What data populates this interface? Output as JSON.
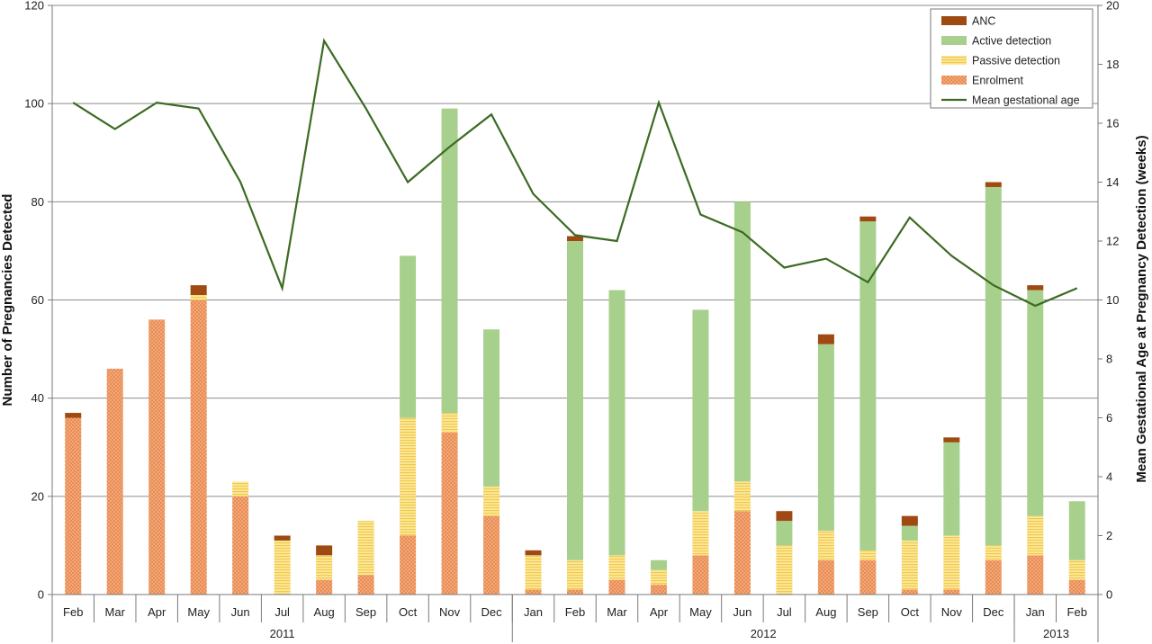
{
  "chart_data": {
    "type": "bar",
    "stacked": true,
    "categories": [
      "Feb",
      "Mar",
      "Apr",
      "May",
      "Jun",
      "Jul",
      "Aug",
      "Sep",
      "Oct",
      "Nov",
      "Dec",
      "Jan",
      "Feb",
      "Mar",
      "Apr",
      "May",
      "Jun",
      "Jul",
      "Aug",
      "Sep",
      "Oct",
      "Nov",
      "Dec",
      "Jan",
      "Feb"
    ],
    "year_groups": [
      {
        "label": "2011",
        "start": 0,
        "count": 11
      },
      {
        "label": "2012",
        "start": 11,
        "count": 12
      },
      {
        "label": "2013",
        "start": 23,
        "count": 2
      }
    ],
    "series": [
      {
        "name": "Enrolment",
        "color": "#f0a070",
        "values": [
          36,
          46,
          56,
          60,
          20,
          0,
          3,
          4,
          12,
          33,
          16,
          1,
          1,
          3,
          2,
          8,
          17,
          0,
          7,
          7,
          1,
          1,
          7,
          8,
          3
        ]
      },
      {
        "name": "Passive detection",
        "color": "#f7dc7a",
        "values": [
          0,
          0,
          0,
          1,
          3,
          11,
          5,
          11,
          24,
          4,
          6,
          7,
          6,
          5,
          3,
          9,
          6,
          10,
          6,
          2,
          10,
          11,
          3,
          8,
          4
        ]
      },
      {
        "name": "Active detection",
        "color": "#a8d08d",
        "values": [
          0,
          0,
          0,
          0,
          0,
          0,
          0,
          0,
          33,
          62,
          32,
          0,
          65,
          54,
          2,
          41,
          57,
          5,
          38,
          67,
          3,
          19,
          73,
          46,
          12
        ]
      },
      {
        "name": "ANC",
        "color": "#9e4a12",
        "values": [
          1,
          0,
          0,
          2,
          0,
          1,
          2,
          0,
          0,
          0,
          0,
          1,
          1,
          0,
          0,
          0,
          0,
          2,
          2,
          1,
          2,
          1,
          1,
          1,
          0
        ]
      }
    ],
    "line_series": {
      "name": "Mean gestational age",
      "color": "#3b6b22",
      "axis": "right",
      "values": [
        16.7,
        15.8,
        16.7,
        16.5,
        14.0,
        10.4,
        18.8,
        16.5,
        14.0,
        15.2,
        16.3,
        13.6,
        12.2,
        12.0,
        16.7,
        12.9,
        12.3,
        11.1,
        11.4,
        10.6,
        12.8,
        11.5,
        10.5,
        9.8,
        10.4
      ]
    },
    "ylabel": "Number of Pregnancies Detected",
    "ylabel_right": "Mean Gestational Age at Pregnancy Detection (weeks)",
    "ylim": [
      0,
      120
    ],
    "yticks": [
      0,
      20,
      40,
      60,
      80,
      100,
      120
    ],
    "ylim_right": [
      0,
      20
    ],
    "yticks_right": [
      0,
      2,
      4,
      6,
      8,
      10,
      12,
      14,
      16,
      18,
      20
    ],
    "grid": true,
    "legend_position": "top-right",
    "legend": [
      "ANC",
      "Active detection",
      "Passive detection",
      "Enrolment",
      "Mean gestational age"
    ]
  }
}
